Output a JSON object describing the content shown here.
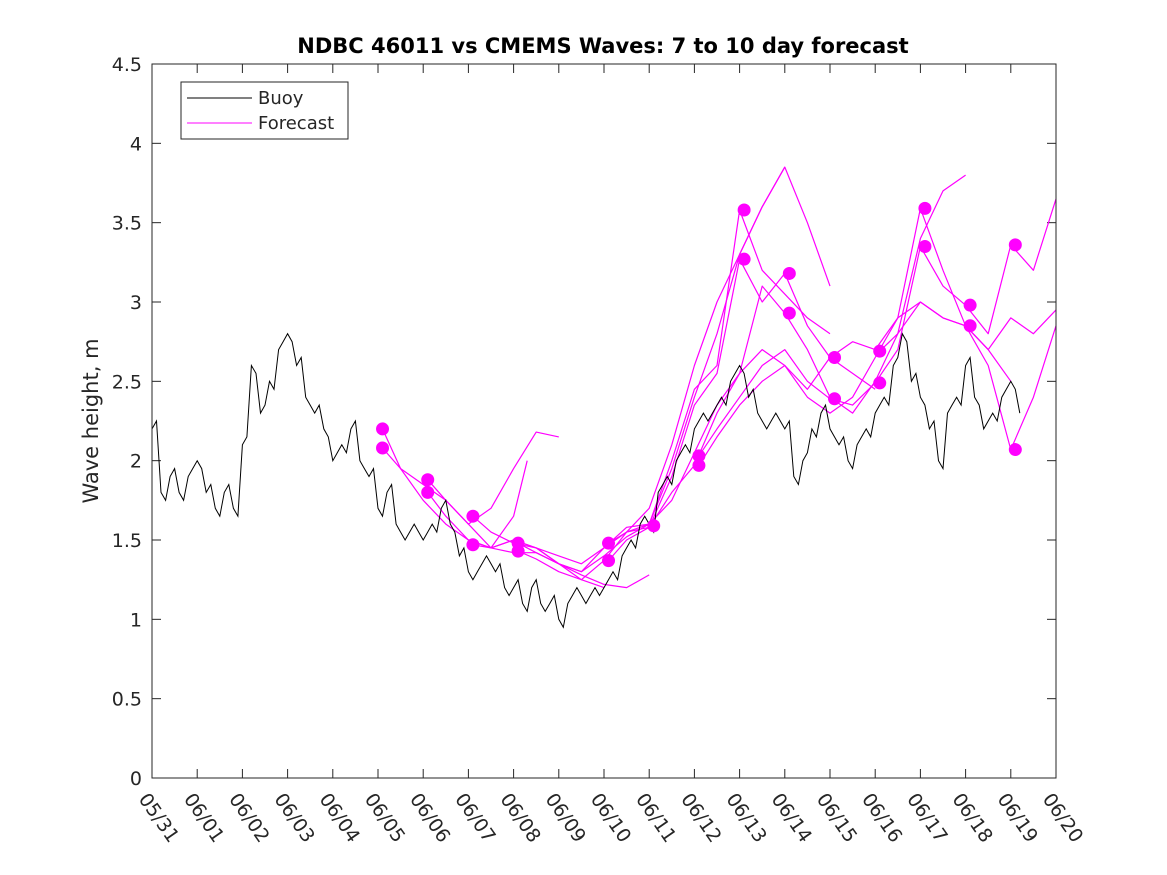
{
  "chart_data": {
    "type": "line",
    "title": "NDBC 46011 vs CMEMS Waves: 7 to 10 day forecast",
    "xlabel": "",
    "ylabel": "Wave height, m",
    "xlim": [
      "05/31",
      "06/20"
    ],
    "ylim": [
      0,
      4.5
    ],
    "x_ticks": [
      "05/31",
      "06/01",
      "06/02",
      "06/03",
      "06/04",
      "06/05",
      "06/06",
      "06/07",
      "06/08",
      "06/09",
      "06/10",
      "06/11",
      "06/12",
      "06/13",
      "06/14",
      "06/15",
      "06/16",
      "06/17",
      "06/18",
      "06/19",
      "06/20"
    ],
    "y_ticks": [
      "0",
      "0.5",
      "1",
      "1.5",
      "2",
      "2.5",
      "3",
      "3.5",
      "4",
      "4.5"
    ],
    "x_unit": "days since 05/31",
    "grid": false,
    "legend_position": "top-left",
    "legend": [
      "Buoy",
      "Forecast"
    ],
    "colors": {
      "buoy": "#000000",
      "forecast": "#ff00ff"
    },
    "buoy": {
      "name": "Buoy",
      "x": [
        0.0,
        0.2,
        0.4,
        0.6,
        0.8,
        1.0,
        1.2,
        1.4,
        1.6,
        1.8,
        2.0,
        2.2,
        2.4,
        2.6,
        2.8,
        3.0,
        3.2,
        3.4,
        3.6,
        3.8,
        4.0,
        4.2,
        4.4,
        4.6,
        4.8,
        5.0,
        5.2,
        5.4,
        5.6,
        5.8,
        6.0,
        6.2,
        6.4,
        6.6,
        6.8,
        7.0,
        7.2,
        7.4,
        7.6,
        7.8,
        8.0,
        8.2,
        8.4,
        8.6,
        8.8,
        9.0,
        9.2,
        9.4,
        9.6,
        9.8,
        10.0,
        10.2,
        10.4,
        10.6,
        10.8,
        11.0,
        11.2,
        11.4,
        11.6,
        11.8,
        12.0,
        12.2,
        12.4,
        12.6,
        12.8,
        13.0,
        13.2,
        13.4,
        13.6,
        13.8,
        14.0,
        14.2,
        14.4,
        14.6,
        14.8,
        15.0,
        15.2,
        15.4,
        15.6,
        15.8,
        16.0,
        16.2,
        16.4,
        16.6,
        16.8,
        17.0,
        17.2,
        17.4,
        17.6,
        17.8,
        18.0,
        18.2,
        18.4,
        18.6,
        18.8,
        19.0,
        19.2
      ],
      "y": [
        2.2,
        1.8,
        1.9,
        1.8,
        1.9,
        2.0,
        1.8,
        1.7,
        1.8,
        1.7,
        2.1,
        2.6,
        2.3,
        2.5,
        2.7,
        2.8,
        2.6,
        2.4,
        2.3,
        2.2,
        2.0,
        2.1,
        2.2,
        2.0,
        1.9,
        1.7,
        1.8,
        1.6,
        1.5,
        1.6,
        1.5,
        1.6,
        1.7,
        1.6,
        1.4,
        1.3,
        1.3,
        1.4,
        1.3,
        1.2,
        1.2,
        1.1,
        1.2,
        1.1,
        1.1,
        1.0,
        1.1,
        1.2,
        1.1,
        1.2,
        1.2,
        1.3,
        1.4,
        1.5,
        1.6,
        1.6,
        1.8,
        1.9,
        2.0,
        2.1,
        2.2,
        2.3,
        2.3,
        2.4,
        2.5,
        2.6,
        2.4,
        2.3,
        2.2,
        2.3,
        2.2,
        1.9,
        2.0,
        2.2,
        2.3,
        2.2,
        2.1,
        2.0,
        2.1,
        2.2,
        2.3,
        2.4,
        2.6,
        2.8,
        2.5,
        2.4,
        2.2,
        2.0,
        2.3,
        2.4,
        2.6,
        2.4,
        2.2,
        2.3,
        2.4,
        2.5,
        2.3
      ]
    },
    "forecasts": [
      {
        "x": [
          5.1,
          5.5,
          6.0,
          6.5,
          7.0,
          7.5,
          8.0,
          8.5,
          9.0,
          9.5,
          10.0
        ],
        "y": [
          2.2,
          1.95,
          1.75,
          1.6,
          1.5,
          1.45,
          1.5,
          1.45,
          1.35,
          1.25,
          1.2
        ]
      },
      {
        "x": [
          5.1,
          5.5,
          6.0,
          6.5,
          7.0,
          7.5,
          8.0,
          8.3
        ],
        "y": [
          2.08,
          1.95,
          1.85,
          1.75,
          1.6,
          1.45,
          1.65,
          2.0
        ]
      },
      {
        "x": [
          6.1,
          6.5,
          7.0,
          7.5,
          8.0,
          8.5,
          9.0
        ],
        "y": [
          1.88,
          1.75,
          1.6,
          1.7,
          1.95,
          2.18,
          2.15
        ]
      },
      {
        "x": [
          6.1,
          6.5,
          7.0,
          7.5,
          8.0,
          8.5,
          9.0,
          9.5,
          10.0,
          10.5,
          11.0
        ],
        "y": [
          1.8,
          1.65,
          1.5,
          1.45,
          1.5,
          1.45,
          1.35,
          1.28,
          1.22,
          1.2,
          1.28
        ]
      },
      {
        "x": [
          7.1,
          7.5,
          8.0,
          8.5,
          9.0,
          9.5,
          10.0,
          10.5,
          11.0,
          11.5,
          12.0,
          12.5,
          13.0,
          13.5,
          14.0
        ],
        "y": [
          1.65,
          1.55,
          1.48,
          1.45,
          1.4,
          1.35,
          1.45,
          1.55,
          1.7,
          2.1,
          2.6,
          3.0,
          3.3,
          3.6,
          3.85
        ]
      },
      {
        "x": [
          7.1,
          7.5,
          8.0,
          8.5,
          9.0,
          9.5,
          10.0,
          10.5,
          11.0,
          11.5,
          12.0,
          12.5,
          13.0,
          13.5,
          14.0,
          14.5,
          15.0
        ],
        "y": [
          1.47,
          1.45,
          1.42,
          1.42,
          1.35,
          1.3,
          1.4,
          1.52,
          1.6,
          1.95,
          2.4,
          2.8,
          3.3,
          3.6,
          3.85,
          3.5,
          3.1
        ]
      },
      {
        "x": [
          8.1,
          8.5,
          9.0,
          9.5,
          10.0,
          10.5,
          11.0,
          11.5,
          12.0,
          12.5,
          13.0,
          13.5,
          14.0,
          14.5,
          15.0
        ],
        "y": [
          1.48,
          1.42,
          1.35,
          1.3,
          1.45,
          1.58,
          1.6,
          2.0,
          2.45,
          2.6,
          3.58,
          3.2,
          3.05,
          2.9,
          2.8
        ]
      },
      {
        "x": [
          8.1,
          8.5,
          9.0,
          9.5,
          10.0,
          10.5,
          11.0,
          11.5,
          12.0,
          12.5,
          13.0,
          13.5,
          14.0,
          14.5,
          15.0,
          15.5,
          16.0
        ],
        "y": [
          1.43,
          1.38,
          1.3,
          1.25,
          1.37,
          1.55,
          1.58,
          1.9,
          2.35,
          2.55,
          3.27,
          3.0,
          3.18,
          2.85,
          2.65,
          2.55,
          2.45
        ]
      },
      {
        "x": [
          10.1,
          10.5,
          11.0,
          11.5,
          12.0,
          12.5,
          13.0,
          13.5,
          14.0,
          14.5,
          15.0,
          15.5,
          16.0,
          16.5,
          17.0,
          17.5,
          18.0
        ],
        "y": [
          1.48,
          1.55,
          1.6,
          1.75,
          2.05,
          2.35,
          2.55,
          3.1,
          2.93,
          2.7,
          2.4,
          2.3,
          2.5,
          2.8,
          3.4,
          3.7,
          3.8
        ]
      },
      {
        "x": [
          10.1,
          10.5,
          11.0,
          11.5,
          12.0,
          12.5,
          13.0,
          13.5,
          14.0,
          14.5,
          15.0,
          15.5,
          16.0,
          16.5,
          17.0,
          17.5,
          18.0,
          18.5,
          19.0
        ],
        "y": [
          1.37,
          1.5,
          1.58,
          1.8,
          1.97,
          2.3,
          2.55,
          2.7,
          2.6,
          2.45,
          2.65,
          2.75,
          2.7,
          2.9,
          3.59,
          3.2,
          2.85,
          2.7,
          2.5
        ]
      },
      {
        "x": [
          12.1,
          12.5,
          13.0,
          13.5,
          14.0,
          14.5,
          15.0,
          15.5,
          16.0,
          16.5,
          17.0,
          17.5,
          18.0,
          18.5,
          19.0,
          19.5,
          20.0
        ],
        "y": [
          2.03,
          2.2,
          2.4,
          2.6,
          2.7,
          2.5,
          2.39,
          2.35,
          2.49,
          2.7,
          3.35,
          3.1,
          2.98,
          2.8,
          3.36,
          3.2,
          3.65
        ]
      },
      {
        "x": [
          12.1,
          12.5,
          13.0,
          13.5,
          14.0,
          14.5,
          15.0,
          15.5,
          16.0,
          16.5,
          17.0,
          17.5,
          18.0,
          18.5,
          19.0,
          19.5,
          20.0
        ],
        "y": [
          1.97,
          2.15,
          2.35,
          2.5,
          2.6,
          2.4,
          2.3,
          2.4,
          2.65,
          2.9,
          3.0,
          2.9,
          2.85,
          2.7,
          2.9,
          2.8,
          2.95
        ]
      },
      {
        "x": [
          16.1,
          16.5,
          17.0,
          17.5,
          18.0,
          18.5,
          19.0,
          19.5,
          20.0
        ],
        "y": [
          2.69,
          2.8,
          3.0,
          2.9,
          2.85,
          2.6,
          2.07,
          2.4,
          2.85
        ]
      }
    ],
    "forecast_start_points": {
      "x": [
        5.1,
        5.1,
        6.1,
        6.1,
        7.1,
        7.1,
        8.1,
        8.1,
        10.1,
        10.1,
        11.1,
        12.1,
        12.1,
        13.1,
        13.1,
        14.1,
        14.1,
        15.1,
        15.1,
        16.1,
        16.1,
        17.1,
        17.1,
        18.1,
        18.1,
        19.1,
        19.1
      ],
      "y": [
        2.2,
        2.08,
        1.88,
        1.8,
        1.65,
        1.47,
        1.48,
        1.43,
        1.48,
        1.37,
        1.59,
        2.03,
        1.97,
        3.58,
        3.27,
        3.18,
        2.93,
        2.65,
        2.39,
        2.69,
        2.49,
        3.59,
        3.35,
        2.98,
        2.85,
        3.36,
        2.07
      ]
    }
  }
}
